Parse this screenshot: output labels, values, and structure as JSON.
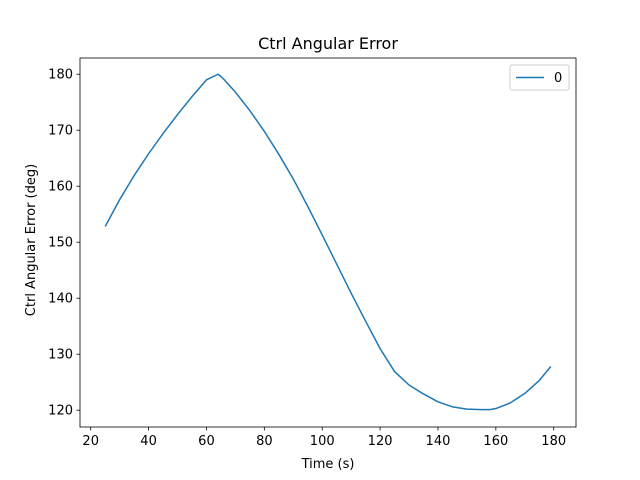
{
  "chart_data": {
    "type": "line",
    "title": "Ctrl Angular Error",
    "xlabel": "Time (s)",
    "ylabel": "Ctrl Angular Error (deg)",
    "xlim": [
      16.3,
      187.7
    ],
    "ylim": [
      117.0,
      182.9
    ],
    "xticks": [
      20,
      40,
      60,
      80,
      100,
      120,
      140,
      160,
      180
    ],
    "yticks": [
      120,
      130,
      140,
      150,
      160,
      170,
      180
    ],
    "grid": false,
    "legend_position": "top-right",
    "series": [
      {
        "name": "0",
        "color": "#1f77b4",
        "x": [
          25,
          30,
          35,
          40,
          45,
          50,
          55,
          60,
          64,
          65,
          66,
          70,
          75,
          80,
          85,
          90,
          95,
          100,
          105,
          110,
          115,
          120,
          125,
          130,
          135,
          140,
          145,
          150,
          155,
          158,
          160,
          165,
          170,
          175,
          179
        ],
        "y": [
          152.8,
          157.6,
          161.9,
          165.8,
          169.4,
          172.8,
          176.0,
          179.0,
          180.0,
          179.6,
          179.1,
          176.8,
          173.5,
          169.8,
          165.7,
          161.3,
          156.4,
          151.3,
          146.1,
          140.9,
          135.9,
          131.0,
          126.9,
          124.5,
          122.9,
          121.5,
          120.6,
          120.2,
          120.1,
          120.1,
          120.3,
          121.3,
          123.0,
          125.3,
          127.8
        ]
      }
    ]
  }
}
